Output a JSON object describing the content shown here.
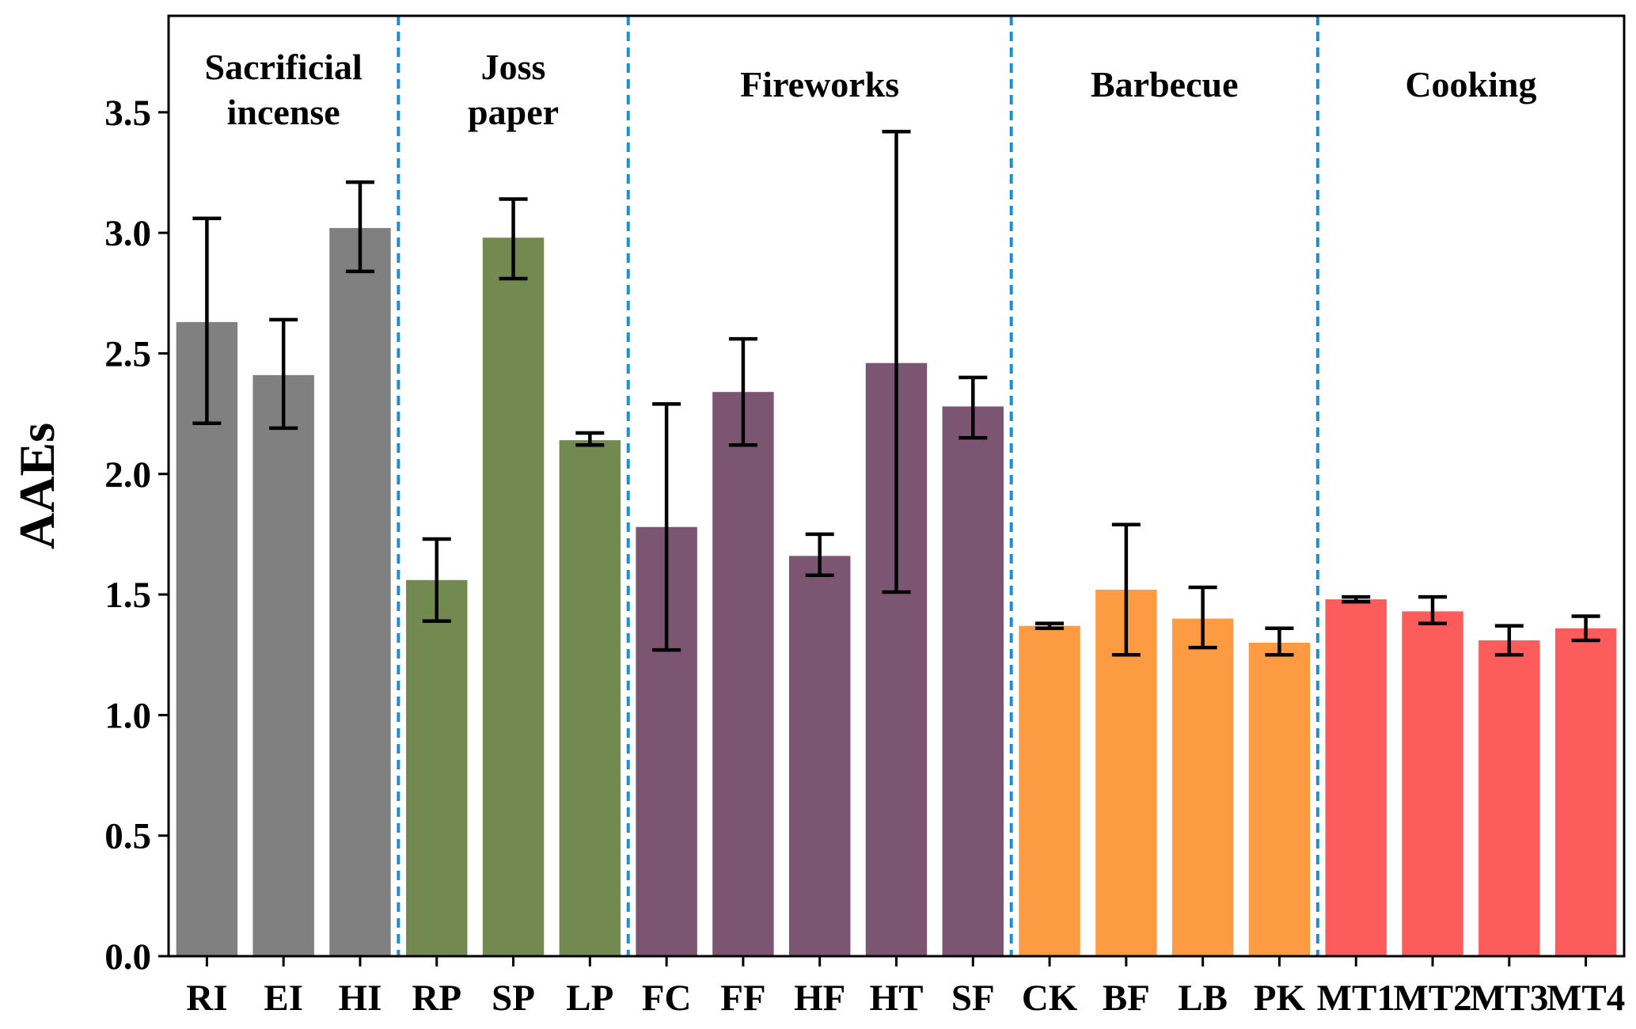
{
  "chart_data": {
    "type": "bar",
    "title": "",
    "xlabel": "",
    "ylabel": "AAEs",
    "ylim": [
      0,
      3.9
    ],
    "yticks": [
      "0.0",
      "0.5",
      "1.0",
      "1.5",
      "2.0",
      "2.5",
      "3.0",
      "3.5"
    ],
    "grid": false,
    "legend": "none",
    "groups": [
      {
        "name": "Sacrificial incense",
        "lines": [
          "Sacrificial",
          "incense"
        ],
        "color": "#808080",
        "bars": [
          {
            "label": "RI",
            "value": 2.63,
            "err_low": 2.21,
            "err_high": 3.06
          },
          {
            "label": "EI",
            "value": 2.41,
            "err_low": 2.19,
            "err_high": 2.64
          },
          {
            "label": "HI",
            "value": 3.02,
            "err_low": 2.84,
            "err_high": 3.21
          }
        ]
      },
      {
        "name": "Joss paper",
        "lines": [
          "Joss",
          "paper"
        ],
        "color": "#728a50",
        "bars": [
          {
            "label": "RP",
            "value": 1.56,
            "err_low": 1.39,
            "err_high": 1.73
          },
          {
            "label": "SP",
            "value": 2.98,
            "err_low": 2.81,
            "err_high": 3.14
          },
          {
            "label": "LP",
            "value": 2.14,
            "err_low": 2.12,
            "err_high": 2.17
          }
        ]
      },
      {
        "name": "Fireworks",
        "lines": [
          "Fireworks"
        ],
        "color": "#7b5572",
        "bars": [
          {
            "label": "FC",
            "value": 1.78,
            "err_low": 1.27,
            "err_high": 2.29
          },
          {
            "label": "FF",
            "value": 2.34,
            "err_low": 2.12,
            "err_high": 2.56
          },
          {
            "label": "HF",
            "value": 1.66,
            "err_low": 1.58,
            "err_high": 1.75
          },
          {
            "label": "HT",
            "value": 2.46,
            "err_low": 1.51,
            "err_high": 3.42
          },
          {
            "label": "SF",
            "value": 2.28,
            "err_low": 2.15,
            "err_high": 2.4
          }
        ]
      },
      {
        "name": "Barbecue",
        "lines": [
          "Barbecue"
        ],
        "color": "#fd9b42",
        "bars": [
          {
            "label": "CK",
            "value": 1.37,
            "err_low": 1.36,
            "err_high": 1.38
          },
          {
            "label": "BF",
            "value": 1.52,
            "err_low": 1.25,
            "err_high": 1.79
          },
          {
            "label": "LB",
            "value": 1.4,
            "err_low": 1.28,
            "err_high": 1.53
          },
          {
            "label": "PK",
            "value": 1.3,
            "err_low": 1.25,
            "err_high": 1.36
          }
        ]
      },
      {
        "name": "Cooking",
        "lines": [
          "Cooking"
        ],
        "color": "#fd5c5d",
        "bars": [
          {
            "label": "MT1",
            "value": 1.48,
            "err_low": 1.47,
            "err_high": 1.49
          },
          {
            "label": "MT2",
            "value": 1.43,
            "err_low": 1.38,
            "err_high": 1.49
          },
          {
            "label": "MT3",
            "value": 1.31,
            "err_low": 1.25,
            "err_high": 1.37
          },
          {
            "label": "MT4",
            "value": 1.36,
            "err_low": 1.31,
            "err_high": 1.41
          }
        ]
      }
    ],
    "divider_color": "#1a8fd8"
  }
}
